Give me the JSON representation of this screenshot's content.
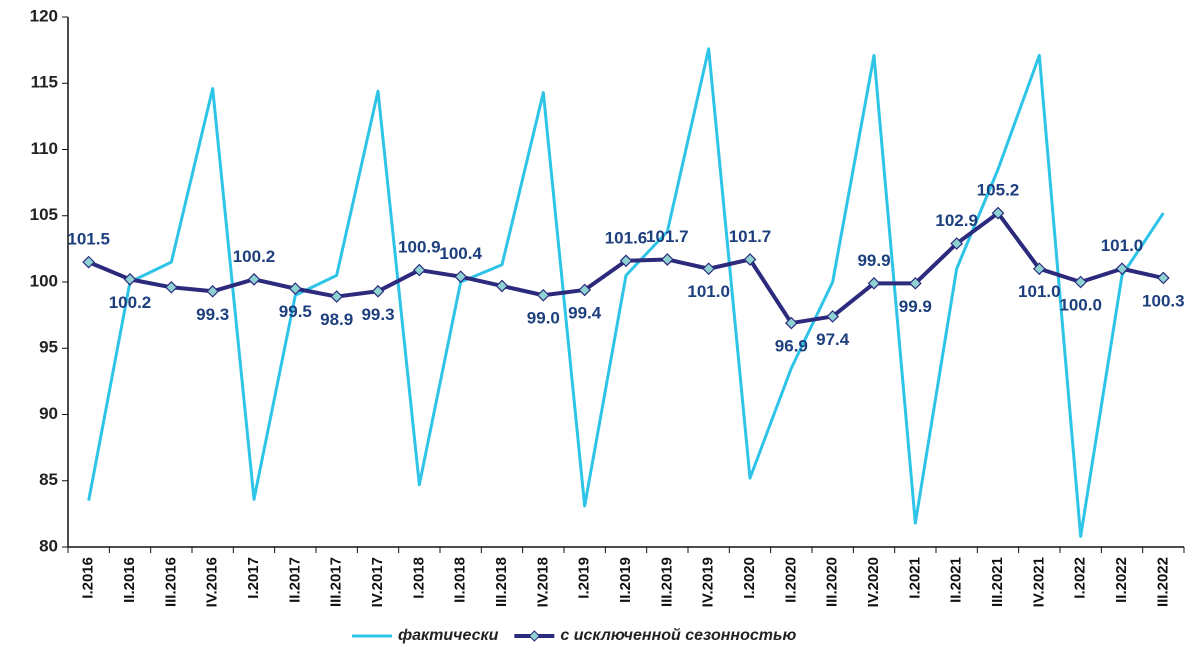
{
  "chart_data": {
    "type": "line",
    "categories": [
      "I.2016",
      "II.2016",
      "III.2016",
      "IV.2016",
      "I.2017",
      "II.2017",
      "III.2017",
      "IV.2017",
      "I.2018",
      "II.2018",
      "III.2018",
      "IV.2018",
      "I.2019",
      "II.2019",
      "III.2019",
      "IV.2019",
      "I.2020",
      "II.2020",
      "III.2020",
      "IV.2020",
      "I.2021",
      "II.2021",
      "III.2021",
      "IV.2021",
      "I.2022",
      "II.2022",
      "III.2022"
    ],
    "series": [
      {
        "name": "фактически",
        "color": "#2ec4e8",
        "values": [
          83.5,
          100.0,
          101.5,
          114.6,
          83.6,
          99.0,
          100.5,
          114.4,
          84.7,
          100.0,
          101.3,
          114.3,
          83.1,
          100.5,
          103.8,
          117.6,
          85.2,
          93.5,
          100.0,
          117.1,
          81.8,
          101.0,
          108.5,
          117.1,
          80.8,
          100.5,
          105.2
        ]
      },
      {
        "name": "с исключенной сезонностью",
        "color": "#2c2a7c",
        "marker_color": "#8ed3d2",
        "values": [
          101.5,
          100.2,
          99.6,
          99.3,
          100.2,
          99.5,
          98.9,
          99.3,
          100.9,
          100.4,
          99.7,
          99.0,
          99.4,
          101.6,
          101.7,
          101.0,
          101.7,
          96.9,
          97.4,
          99.9,
          99.9,
          102.9,
          105.2,
          101.0,
          100.0,
          101.0,
          100.3
        ],
        "value_labels": [
          "101.5",
          "100.2",
          null,
          "99.3",
          "100.2",
          "99.5",
          "98.9",
          "99.3",
          "100.9",
          "100.4",
          null,
          "99.0",
          "99.4",
          "101.6",
          "101.7",
          "101.0",
          "101.7",
          "96.9",
          "97.4",
          "99.9",
          "99.9",
          "102.9",
          "105.2",
          "101.0",
          "100.0",
          "101.0",
          "100.3"
        ]
      }
    ],
    "ylim": [
      80,
      120
    ],
    "yticks": [
      80,
      85,
      90,
      95,
      100,
      105,
      110,
      115,
      120
    ],
    "grid": false
  }
}
